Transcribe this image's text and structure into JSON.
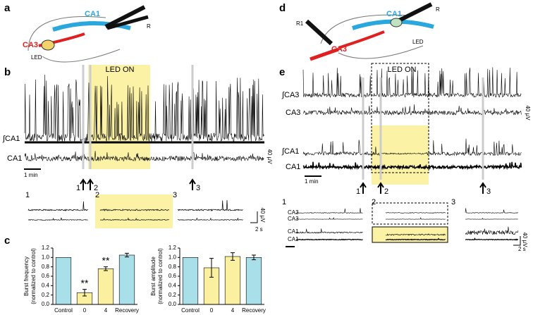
{
  "panels": {
    "a": "a",
    "b": "b",
    "c": "c",
    "d": "d",
    "e": "e"
  },
  "diagram_a": {
    "ca1": "CA1",
    "r": "R",
    "ca3": "CA3",
    "led": "LED"
  },
  "diagram_d": {
    "r1": "R1",
    "ca1": "CA1",
    "r": "R",
    "ca3": "CA3",
    "led": "LED"
  },
  "panel_b": {
    "led_on": "LED ON",
    "int_ca1": "∫CA1",
    "ca1": "CA1",
    "time_scale": "1 min",
    "amp_scale": "40 µV",
    "markers": [
      "1",
      "2",
      "3"
    ],
    "inset_time": "2 s",
    "inset_amp": "40 µV"
  },
  "panel_e": {
    "led_on": "LED ON",
    "int_ca3": "∫CA3",
    "ca3": "CA3",
    "int_ca1": "∫CA1",
    "ca1": "CA1",
    "time_scale": "1 min",
    "amp_scale": "40 µV",
    "markers": [
      "1",
      "2",
      "3"
    ],
    "inset_labels": [
      "CA3",
      "CA3",
      "CA1",
      "CA1"
    ],
    "inset_amp": "40 µV",
    "inset_time": "2 s"
  },
  "chart_data": [
    {
      "type": "bar",
      "ylabel": "Burst frequency\n(normalized to control)",
      "categories": [
        "Control",
        "0",
        "4",
        "Recovery"
      ],
      "values": [
        1.0,
        0.25,
        0.76,
        1.05
      ],
      "errors": [
        0,
        0.07,
        0.04,
        0.04
      ],
      "colors": [
        "#a9dfe8",
        "#fbf0a0",
        "#fbf0a0",
        "#a9dfe8"
      ],
      "annotations": [
        {
          "text": "**",
          "index": 1
        },
        {
          "text": "**",
          "index": 2
        }
      ],
      "ylim": [
        0,
        1.2
      ],
      "yticks": [
        {
          "value": 0,
          "label": "0.0"
        },
        0.2,
        0.4,
        0.6,
        0.8,
        {
          "value": 1,
          "label": "1.0"
        },
        1.2
      ]
    },
    {
      "type": "bar",
      "ylabel": "Burst amplitude\n(normalized to control)",
      "categories": [
        "Control",
        "0",
        "4",
        "Recovery"
      ],
      "values": [
        1.0,
        0.78,
        1.02,
        1.0
      ],
      "errors": [
        0,
        0.2,
        0.08,
        0.05
      ],
      "colors": [
        "#a9dfe8",
        "#fbf0a0",
        "#fbf0a0",
        "#a9dfe8"
      ],
      "ylim": [
        0,
        1.2
      ],
      "yticks": [
        {
          "value": 0,
          "label": "0.0"
        },
        0.2,
        0.4,
        0.6,
        0.8,
        {
          "value": 1,
          "label": "1.0"
        },
        1.2
      ]
    }
  ]
}
